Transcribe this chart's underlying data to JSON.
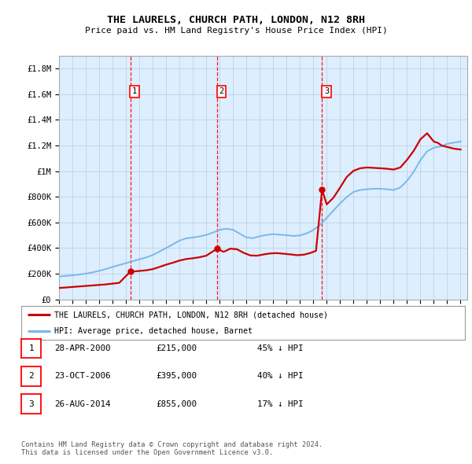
{
  "title": "THE LAURELS, CHURCH PATH, LONDON, N12 8RH",
  "subtitle": "Price paid vs. HM Land Registry's House Price Index (HPI)",
  "hpi_label": "HPI: Average price, detached house, Barnet",
  "property_label": "THE LAURELS, CHURCH PATH, LONDON, N12 8RH (detached house)",
  "footer_line1": "Contains HM Land Registry data © Crown copyright and database right 2024.",
  "footer_line2": "This data is licensed under the Open Government Licence v3.0.",
  "sale_markers": [
    {
      "num": 1,
      "date": "28-APR-2000",
      "price": 215000,
      "pct": "45%",
      "x_year": 2000.32
    },
    {
      "num": 2,
      "date": "23-OCT-2006",
      "price": 395000,
      "pct": "40%",
      "x_year": 2006.81
    },
    {
      "num": 3,
      "date": "26-AUG-2014",
      "price": 855000,
      "pct": "17%",
      "x_year": 2014.65
    }
  ],
  "hpi_color": "#7ab8e8",
  "property_color": "#cc0000",
  "background_color": "#ddeeff",
  "plot_bg": "#ffffff",
  "ylim": [
    0,
    1900000
  ],
  "xlim_start": 1995.0,
  "xlim_end": 2025.5,
  "yticks": [
    0,
    200000,
    400000,
    600000,
    800000,
    1000000,
    1200000,
    1400000,
    1600000,
    1800000
  ],
  "ytick_labels": [
    "£0",
    "£200K",
    "£400K",
    "£600K",
    "£800K",
    "£1M",
    "£1.2M",
    "£1.4M",
    "£1.6M",
    "£1.8M"
  ],
  "xticks": [
    1995,
    1996,
    1997,
    1998,
    1999,
    2000,
    2001,
    2002,
    2003,
    2004,
    2005,
    2006,
    2007,
    2008,
    2009,
    2010,
    2011,
    2012,
    2013,
    2014,
    2015,
    2016,
    2017,
    2018,
    2019,
    2020,
    2021,
    2022,
    2023,
    2024,
    2025
  ],
  "hpi_data_years": [
    1995.0,
    1995.5,
    1996.0,
    1996.5,
    1997.0,
    1997.5,
    1998.0,
    1998.5,
    1999.0,
    1999.5,
    2000.0,
    2000.5,
    2001.0,
    2001.5,
    2002.0,
    2002.5,
    2003.0,
    2003.5,
    2004.0,
    2004.5,
    2005.0,
    2005.5,
    2006.0,
    2006.5,
    2007.0,
    2007.5,
    2008.0,
    2008.5,
    2009.0,
    2009.5,
    2010.0,
    2010.5,
    2011.0,
    2011.5,
    2012.0,
    2012.5,
    2013.0,
    2013.5,
    2014.0,
    2014.5,
    2015.0,
    2015.5,
    2016.0,
    2016.5,
    2017.0,
    2017.5,
    2018.0,
    2018.5,
    2019.0,
    2019.5,
    2020.0,
    2020.5,
    2021.0,
    2021.5,
    2022.0,
    2022.5,
    2023.0,
    2023.5,
    2024.0,
    2024.5,
    2025.0
  ],
  "hpi_data_values": [
    178000,
    182000,
    187000,
    193000,
    200000,
    210000,
    222000,
    236000,
    252000,
    267000,
    282000,
    297000,
    312000,
    326000,
    345000,
    372000,
    400000,
    428000,
    458000,
    475000,
    482000,
    490000,
    502000,
    520000,
    542000,
    550000,
    542000,
    512000,
    482000,
    477000,
    492000,
    502000,
    508000,
    504000,
    500000,
    494000,
    498000,
    514000,
    540000,
    580000,
    635000,
    692000,
    748000,
    798000,
    838000,
    852000,
    858000,
    862000,
    862000,
    858000,
    852000,
    872000,
    924000,
    995000,
    1085000,
    1155000,
    1182000,
    1192000,
    1212000,
    1222000,
    1230000
  ],
  "property_data_years": [
    1995.0,
    1995.5,
    1996.0,
    1996.5,
    1997.0,
    1997.5,
    1998.0,
    1998.5,
    1999.0,
    1999.5,
    2000.32,
    2000.9,
    2001.5,
    2002.0,
    2002.5,
    2003.0,
    2003.5,
    2004.0,
    2004.5,
    2005.0,
    2005.5,
    2006.0,
    2006.81,
    2007.3,
    2007.8,
    2008.3,
    2008.8,
    2009.3,
    2009.8,
    2010.3,
    2010.8,
    2011.3,
    2011.8,
    2012.3,
    2012.8,
    2013.3,
    2013.8,
    2014.2,
    2014.65,
    2015.0,
    2015.5,
    2016.0,
    2016.5,
    2017.0,
    2017.5,
    2018.0,
    2018.5,
    2019.0,
    2019.5,
    2020.0,
    2020.5,
    2021.0,
    2021.5,
    2022.0,
    2022.5,
    2023.0,
    2023.3,
    2023.6,
    2024.0,
    2024.5,
    2025.0
  ],
  "property_data_values": [
    88000,
    92000,
    96000,
    100000,
    104000,
    108000,
    112000,
    116000,
    122000,
    128000,
    215000,
    220000,
    226000,
    235000,
    252000,
    270000,
    285000,
    302000,
    314000,
    320000,
    328000,
    340000,
    395000,
    370000,
    395000,
    390000,
    362000,
    342000,
    340000,
    350000,
    358000,
    360000,
    355000,
    350000,
    344000,
    348000,
    362000,
    378000,
    855000,
    740000,
    792000,
    872000,
    955000,
    1002000,
    1022000,
    1028000,
    1025000,
    1022000,
    1018000,
    1012000,
    1028000,
    1088000,
    1158000,
    1248000,
    1295000,
    1230000,
    1220000,
    1198000,
    1188000,
    1175000,
    1168000
  ]
}
